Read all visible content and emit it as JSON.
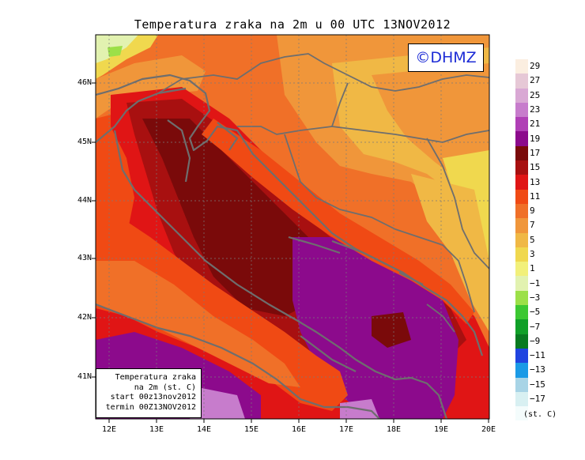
{
  "title": "Temperatura zraka na 2m u 00 UTC 13NOV2012",
  "watermark": "©DHMZ",
  "info_box": {
    "line1": "Temperatura zraka",
    "line2": "na 2m (st. C)",
    "line3": "start 00z13nov2012",
    "line4": "termin 00Z13NOV2012"
  },
  "lat_labels": [
    "46N",
    "45N",
    "44N",
    "43N",
    "42N",
    "41N"
  ],
  "lon_labels": [
    "12E",
    "13E",
    "14E",
    "15E",
    "16E",
    "17E",
    "18E",
    "19E",
    "20E"
  ],
  "colorbar": {
    "unit": "(st. C)",
    "labels": [
      "29",
      "27",
      "25",
      "23",
      "21",
      "19",
      "17",
      "15",
      "13",
      "11",
      "9",
      "7",
      "5",
      "3",
      "1",
      "−1",
      "−3",
      "−5",
      "−7",
      "−9",
      "−11",
      "−13",
      "−15",
      "−17"
    ],
    "colors": [
      "#fbeee0",
      "#e6c8d6",
      "#d9a8d4",
      "#c77ccc",
      "#b03fb6",
      "#8c0a8c",
      "#7a0a0a",
      "#a81010",
      "#e01515",
      "#f04a14",
      "#f07028",
      "#f0963a",
      "#f0b845",
      "#f0d84e",
      "#f2f07a",
      "#e2f2b0",
      "#9ce048",
      "#3cc832",
      "#10a028",
      "#087a20",
      "#2044e0",
      "#1a9ae6",
      "#a8d4e6",
      "#d8f0f2",
      "#f4fcfc"
    ]
  },
  "map_colors": {
    "land_outline": "#6e6e6e",
    "grid": "#7a7a7a"
  }
}
